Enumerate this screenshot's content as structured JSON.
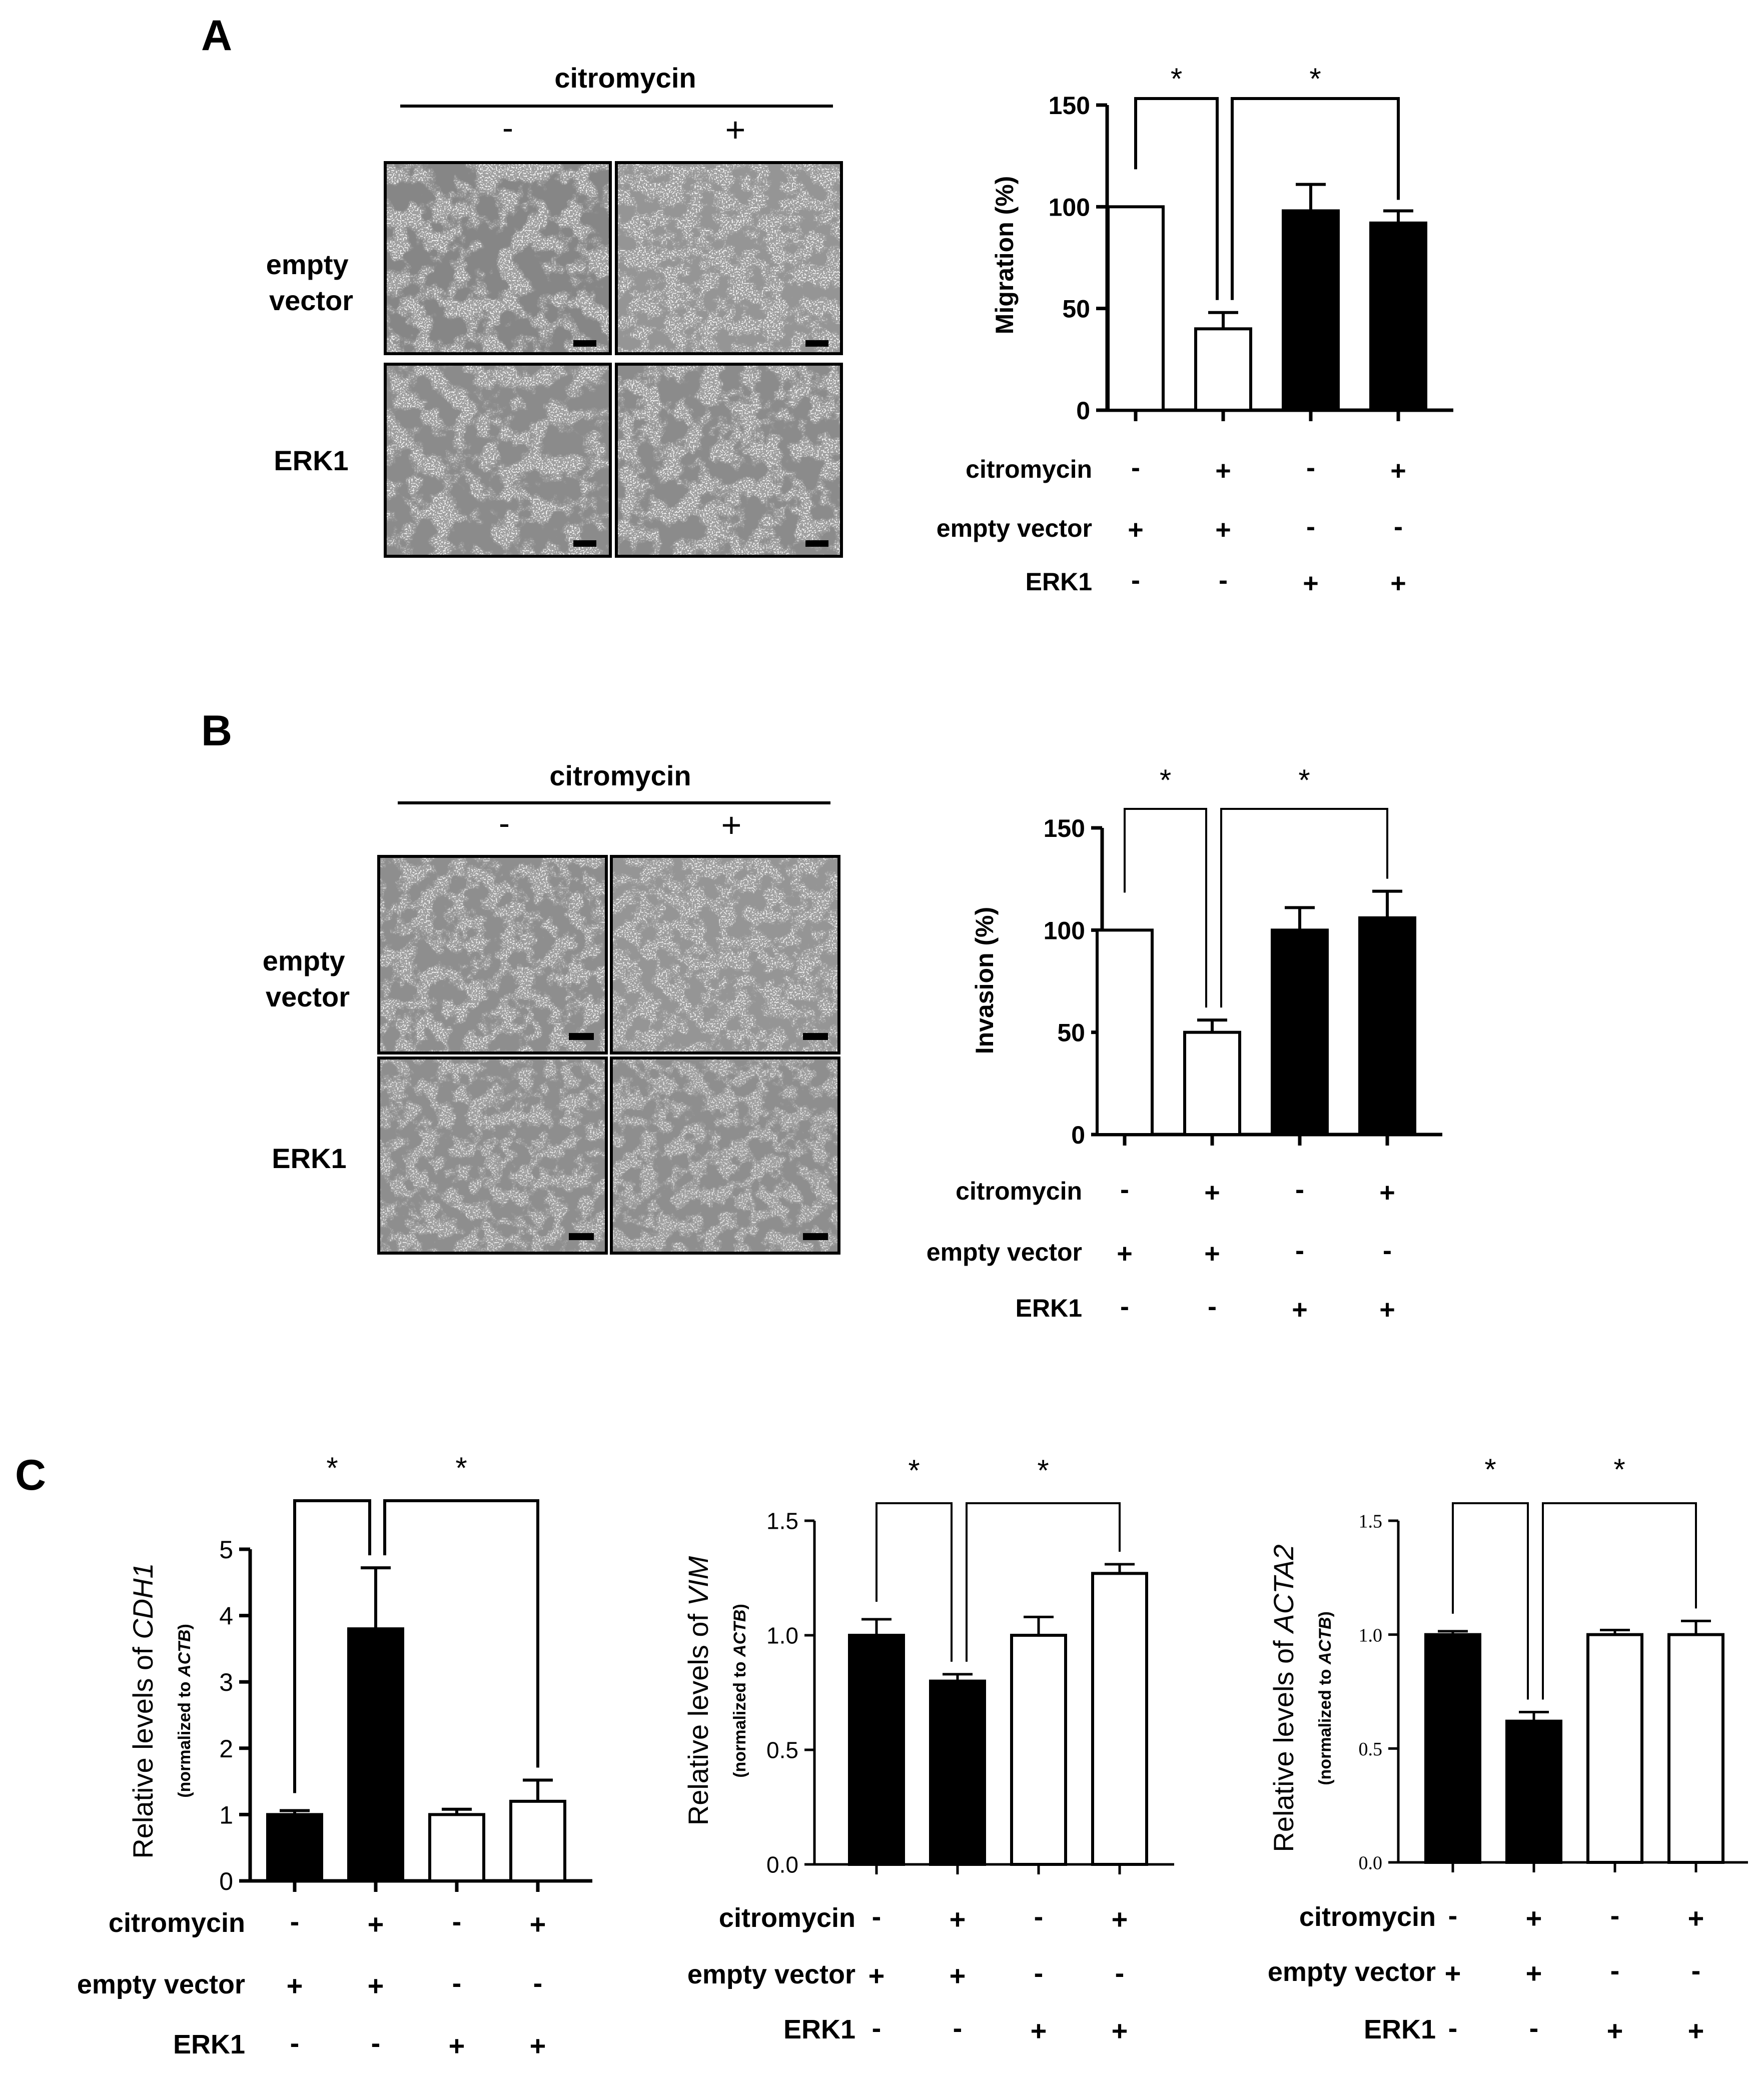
{
  "panels": {
    "A": {
      "letter": "A",
      "micrograph_header": "citromycin",
      "col_labels": [
        "-",
        "+"
      ],
      "row_labels": [
        [
          "empty",
          "vector"
        ],
        [
          "ERK1"
        ]
      ],
      "chart_data": {
        "type": "bar",
        "title": "",
        "ylabel": "Migration (%)",
        "xlabel": "",
        "ylim": [
          0,
          150
        ],
        "yticks": [
          0,
          50,
          100,
          150
        ],
        "values": [
          100,
          40,
          98,
          92
        ],
        "errors": [
          0,
          8,
          13,
          6
        ],
        "fills": [
          "white",
          "white",
          "black",
          "black"
        ],
        "significance": [
          {
            "from": 0,
            "to": 1,
            "label": "*"
          },
          {
            "from": 1,
            "to": 3,
            "label": "*"
          }
        ],
        "conditions": [
          {
            "label": "citromycin",
            "values": [
              "-",
              "+",
              "-",
              "+"
            ]
          },
          {
            "label": "empty vector",
            "values": [
              "+",
              "+",
              "-",
              "-"
            ]
          },
          {
            "label": "ERK1",
            "values": [
              "-",
              "-",
              "+",
              "+"
            ]
          }
        ]
      }
    },
    "B": {
      "letter": "B",
      "micrograph_header": "citromycin",
      "col_labels": [
        "-",
        "+"
      ],
      "row_labels": [
        [
          "empty",
          "vector"
        ],
        [
          "ERK1"
        ]
      ],
      "chart_data": {
        "type": "bar",
        "title": "",
        "ylabel": "Invasion (%)",
        "xlabel": "",
        "ylim": [
          0,
          150
        ],
        "yticks": [
          0,
          50,
          100,
          150
        ],
        "values": [
          100,
          50,
          100,
          106
        ],
        "errors": [
          0,
          6,
          11,
          13
        ],
        "fills": [
          "white",
          "white",
          "black",
          "black"
        ],
        "significance": [
          {
            "from": 0,
            "to": 1,
            "label": "*"
          },
          {
            "from": 1,
            "to": 3,
            "label": "*"
          }
        ],
        "conditions": [
          {
            "label": "citromycin",
            "values": [
              "-",
              "+",
              "-",
              "+"
            ]
          },
          {
            "label": "empty vector",
            "values": [
              "+",
              "+",
              "-",
              "-"
            ]
          },
          {
            "label": "ERK1",
            "values": [
              "-",
              "-",
              "+",
              "+"
            ]
          }
        ]
      }
    },
    "C": {
      "letter": "C",
      "charts": [
        {
          "type": "bar",
          "title": "",
          "ylabel_prefix": "Relative levels of ",
          "ylabel_gene": "CDH1",
          "ylabel_sub_prefix": "(normalized to ",
          "ylabel_sub_gene": "ACTB",
          "ylabel_sub_suffix": ")",
          "xlabel": "",
          "ylim": [
            0,
            5
          ],
          "yticks": [
            "0",
            "1",
            "2",
            "3",
            "4",
            "5"
          ],
          "values": [
            1.0,
            3.8,
            1.0,
            1.2
          ],
          "errors": [
            0.06,
            0.92,
            0.08,
            0.32
          ],
          "fills": [
            "black",
            "black",
            "white",
            "white"
          ],
          "significance": [
            {
              "from": 0,
              "to": 1,
              "label": "*"
            },
            {
              "from": 1,
              "to": 3,
              "label": "*"
            }
          ],
          "conditions": [
            {
              "label": "citromycin",
              "values": [
                "-",
                "+",
                "-",
                "+"
              ]
            },
            {
              "label": "empty vector",
              "values": [
                "+",
                "+",
                "-",
                "-"
              ]
            },
            {
              "label": "ERK1",
              "values": [
                "-",
                "-",
                "+",
                "+"
              ]
            }
          ]
        },
        {
          "type": "bar",
          "title": "",
          "ylabel_prefix": "Relative levels of ",
          "ylabel_gene": "VIM",
          "ylabel_sub_prefix": "(normalized to ",
          "ylabel_sub_gene": "ACTB",
          "ylabel_sub_suffix": ")",
          "xlabel": "",
          "ylim": [
            0,
            1.5
          ],
          "yticks": [
            "0.0",
            "0.5",
            "1.0",
            "1.5"
          ],
          "values": [
            1.0,
            0.8,
            1.0,
            1.27
          ],
          "errors": [
            0.07,
            0.03,
            0.08,
            0.04
          ],
          "fills": [
            "black",
            "black",
            "white",
            "white"
          ],
          "significance": [
            {
              "from": 0,
              "to": 1,
              "label": "*"
            },
            {
              "from": 1,
              "to": 3,
              "label": "*"
            }
          ],
          "conditions": [
            {
              "label": "citromycin",
              "values": [
                "-",
                "+",
                "-",
                "+"
              ]
            },
            {
              "label": "empty vector",
              "values": [
                "+",
                "+",
                "-",
                "-"
              ]
            },
            {
              "label": "ERK1",
              "values": [
                "-",
                "-",
                "+",
                "+"
              ]
            }
          ]
        },
        {
          "type": "bar",
          "title": "",
          "ylabel_prefix": "Relative levels of ",
          "ylabel_gene": "ACTA2",
          "ylabel_sub_prefix": "(normalized to ",
          "ylabel_sub_gene": "ACTB",
          "ylabel_sub_suffix": ")",
          "xlabel": "",
          "ylim": [
            0,
            1.5
          ],
          "yticks": [
            "0.0",
            "0.5",
            "1.0",
            "1.5"
          ],
          "values": [
            1.0,
            0.62,
            1.0,
            1.0
          ],
          "errors": [
            0.015,
            0.04,
            0.02,
            0.06
          ],
          "fills": [
            "black",
            "black",
            "white",
            "white"
          ],
          "significance": [
            {
              "from": 0,
              "to": 1,
              "label": "*"
            },
            {
              "from": 1,
              "to": 3,
              "label": "*"
            }
          ],
          "conditions": [
            {
              "label": "citromycin",
              "values": [
                "-",
                "+",
                "-",
                "+"
              ]
            },
            {
              "label": "empty vector",
              "values": [
                "+",
                "+",
                "-",
                "-"
              ]
            },
            {
              "label": "ERK1",
              "values": [
                "-",
                "-",
                "+",
                "+"
              ]
            }
          ]
        }
      ]
    }
  }
}
